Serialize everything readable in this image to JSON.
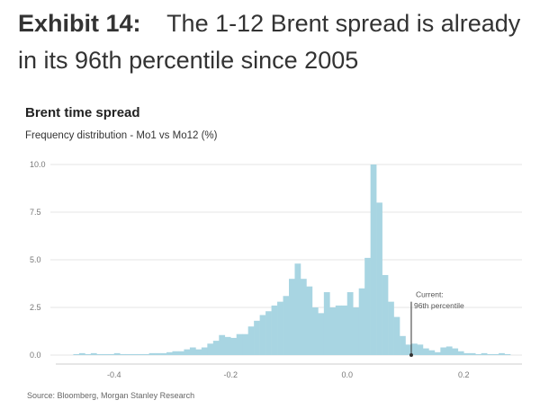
{
  "exhibit": {
    "label": "Exhibit 14:",
    "title": "The 1-12 Brent spread is already in its 96th percentile since 2005"
  },
  "chart_data": {
    "type": "bar",
    "title": "Brent time spread",
    "subtitle": "Frequency distribution - Mo1 vs Mo12 (%)",
    "xlabel": "",
    "ylabel": "",
    "xlim": [
      -0.5,
      0.3
    ],
    "ylim": [
      0,
      10
    ],
    "bin_width": 0.01,
    "x_ticks": [
      {
        "value": -0.4,
        "label": "-0.4"
      },
      {
        "value": -0.2,
        "label": "-0.2"
      },
      {
        "value": 0.0,
        "label": "0.0"
      },
      {
        "value": 0.2,
        "label": "0.2"
      }
    ],
    "y_ticks": [
      {
        "value": 0.0,
        "label": "0.0"
      },
      {
        "value": 2.5,
        "label": "2.5"
      },
      {
        "value": 5.0,
        "label": "5.0"
      },
      {
        "value": 7.5,
        "label": "7.5"
      },
      {
        "value": 10.0,
        "label": "10.0"
      }
    ],
    "bin_starts": [
      -0.48,
      -0.47,
      -0.46,
      -0.45,
      -0.44,
      -0.43,
      -0.42,
      -0.41,
      -0.4,
      -0.39,
      -0.38,
      -0.37,
      -0.36,
      -0.35,
      -0.34,
      -0.33,
      -0.32,
      -0.31,
      -0.3,
      -0.29,
      -0.28,
      -0.27,
      -0.26,
      -0.25,
      -0.24,
      -0.23,
      -0.22,
      -0.21,
      -0.2,
      -0.19,
      -0.18,
      -0.17,
      -0.16,
      -0.15,
      -0.14,
      -0.13,
      -0.12,
      -0.11,
      -0.1,
      -0.09,
      -0.08,
      -0.07,
      -0.06,
      -0.05,
      -0.04,
      -0.03,
      -0.02,
      -0.01,
      0.0,
      0.01,
      0.02,
      0.03,
      0.04,
      0.05,
      0.06,
      0.07,
      0.08,
      0.09,
      0.1,
      0.11,
      0.12,
      0.13,
      0.14,
      0.15,
      0.16,
      0.17,
      0.18,
      0.19,
      0.2,
      0.21,
      0.22,
      0.23,
      0.24,
      0.25,
      0.26,
      0.27
    ],
    "values": [
      0.0,
      0.05,
      0.1,
      0.05,
      0.1,
      0.05,
      0.05,
      0.05,
      0.1,
      0.05,
      0.05,
      0.05,
      0.05,
      0.05,
      0.1,
      0.1,
      0.1,
      0.15,
      0.2,
      0.2,
      0.3,
      0.4,
      0.3,
      0.4,
      0.6,
      0.75,
      1.05,
      0.95,
      0.9,
      1.1,
      1.1,
      1.5,
      1.8,
      2.1,
      2.3,
      2.6,
      2.8,
      3.1,
      4.0,
      4.8,
      4.0,
      3.6,
      2.5,
      2.2,
      3.3,
      2.5,
      2.6,
      2.6,
      3.3,
      2.5,
      3.5,
      5.1,
      10.0,
      8.0,
      4.2,
      2.8,
      2.0,
      1.0,
      0.55,
      0.6,
      0.55,
      0.35,
      0.25,
      0.15,
      0.4,
      0.45,
      0.35,
      0.2,
      0.1,
      0.1,
      0.05,
      0.1,
      0.05,
      0.05,
      0.1,
      0.05
    ],
    "bar_color": "#a8d5e2",
    "marker": {
      "x": 0.11,
      "label_line1": "Current:",
      "label_line2": "96th percentile",
      "color": "#333333"
    }
  },
  "source": "Source: Bloomberg, Morgan Stanley Research"
}
